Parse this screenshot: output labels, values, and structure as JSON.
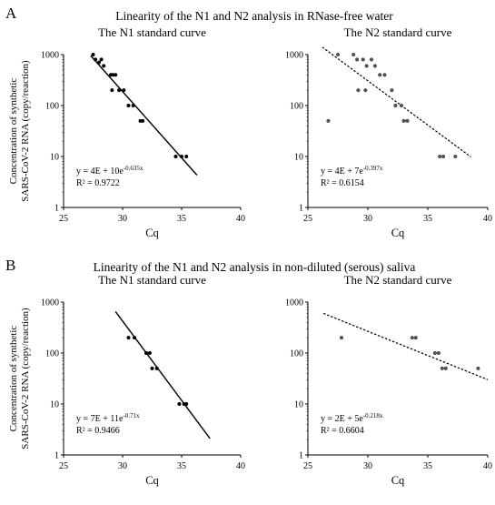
{
  "panels": [
    {
      "letter": "A",
      "title": "Linearity of the N1 and N2 analysis in RNase-free water"
    },
    {
      "letter": "B",
      "title": "Linearity of the N1 and N2 analysis in non-diluted (serous) saliva"
    }
  ],
  "chart_data": [
    {
      "type": "scatter",
      "panel": "A",
      "title": "The N1 standard curve",
      "xlabel": "Cq",
      "ylabel": [
        "Concentration of synthetic",
        "SARS-CoV-2 RNA (copy/reaction)"
      ],
      "xlim": [
        25,
        40
      ],
      "ylim": [
        1,
        1000
      ],
      "yscale": "log",
      "xticks": [
        "25",
        "30",
        "35",
        "40"
      ],
      "yticks": [
        "1",
        "10",
        "100",
        "1000"
      ],
      "x": [
        27.5,
        27.7,
        28.0,
        28.2,
        28.4,
        29.0,
        29.2,
        29.4,
        29.1,
        29.7,
        30.1,
        30.5,
        30.9,
        31.5,
        31.7,
        34.5,
        35.0,
        35.4
      ],
      "y": [
        1000,
        800,
        700,
        800,
        600,
        400,
        400,
        400,
        200,
        200,
        200,
        100,
        100,
        50,
        50,
        10,
        10,
        10
      ],
      "trendline": {
        "style": "solid",
        "x": [
          27.3,
          36.3
        ],
        "y": [
          950,
          4.3
        ]
      },
      "equation": "y = 4E + 10e",
      "exponent": "-0.635x",
      "r2": "R² = 0.9722"
    },
    {
      "type": "scatter",
      "panel": "A",
      "title": "The N2 standard curve",
      "xlabel": "Cq",
      "ylabel": [],
      "xlim": [
        25,
        40
      ],
      "ylim": [
        1,
        1000
      ],
      "yscale": "log",
      "xticks": [
        "25",
        "30",
        "35",
        "40"
      ],
      "yticks": [
        "1",
        "10",
        "100",
        "1000"
      ],
      "x": [
        26.7,
        27.5,
        28.8,
        29.1,
        29.6,
        29.9,
        30.3,
        30.6,
        31.0,
        31.4,
        29.2,
        29.8,
        32.0,
        32.3,
        32.8,
        33.0,
        33.3,
        36.0,
        36.3,
        37.3
      ],
      "y": [
        50,
        1000,
        1000,
        800,
        800,
        600,
        800,
        600,
        400,
        400,
        200,
        200,
        200,
        100,
        100,
        50,
        50,
        10,
        10,
        10
      ],
      "trendline": {
        "style": "dashed",
        "x": [
          26.2,
          38.6
        ],
        "y": [
          1400,
          9.8
        ]
      },
      "equation": "y = 4E + 7e",
      "exponent": "-0.397x",
      "r2": "R² = 0.6154"
    },
    {
      "type": "scatter",
      "panel": "B",
      "title": "The N1 standard curve",
      "xlabel": "Cq",
      "ylabel": [
        "Concentration of synthetic",
        "SARS-CoV-2 RNA (copy/reaction)"
      ],
      "xlim": [
        25,
        40
      ],
      "ylim": [
        1,
        1000
      ],
      "yscale": "log",
      "xticks": [
        "25",
        "30",
        "35",
        "40"
      ],
      "yticks": [
        "1",
        "10",
        "100",
        "1000"
      ],
      "x": [
        30.5,
        31.0,
        32.0,
        32.3,
        32.5,
        32.9,
        34.8,
        35.2,
        35.4
      ],
      "y": [
        200,
        200,
        100,
        100,
        50,
        50,
        10,
        10,
        10
      ],
      "trendline": {
        "style": "solid",
        "x": [
          29.4,
          37.4
        ],
        "y": [
          650,
          2.1
        ]
      },
      "equation": "y = 7E + 11e",
      "exponent": "-0.71x",
      "r2": "R² = 0.9466"
    },
    {
      "type": "scatter",
      "panel": "B",
      "title": "The N2 standard curve",
      "xlabel": "Cq",
      "ylabel": [],
      "xlim": [
        25,
        40
      ],
      "ylim": [
        1,
        1000
      ],
      "yscale": "log",
      "xticks": [
        "25",
        "30",
        "35",
        "40"
      ],
      "yticks": [
        "1",
        "10",
        "100",
        "1000"
      ],
      "x": [
        27.8,
        33.7,
        34.0,
        35.6,
        35.9,
        36.2,
        36.5,
        39.2
      ],
      "y": [
        200,
        200,
        200,
        100,
        100,
        50,
        50,
        50
      ],
      "trendline": {
        "style": "dashed",
        "x": [
          26.3,
          40.0
        ],
        "y": [
          600,
          30
        ]
      },
      "equation": "y = 2E + 5e",
      "exponent": "-0.218x",
      "r2": "R² = 0.6604"
    }
  ]
}
